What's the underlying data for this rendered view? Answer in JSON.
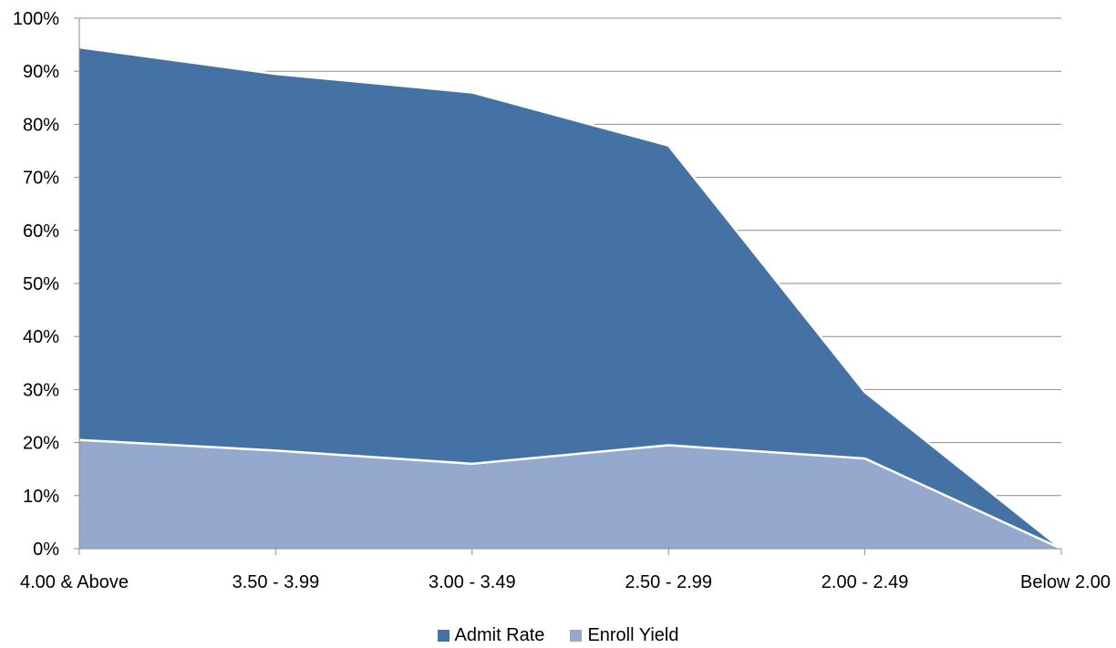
{
  "chart_data": {
    "type": "area",
    "stacked": false,
    "categories": [
      "4.00 & Above",
      "3.50 - 3.99",
      "3.00 - 3.49",
      "2.50 - 2.99",
      "2.00 - 2.49",
      "Below 2.00"
    ],
    "series": [
      {
        "name": "Admit Rate",
        "values": [
          94.5,
          89.5,
          86,
          76,
          29.5,
          0
        ],
        "color": "#4472A4"
      },
      {
        "name": "Enroll Yield",
        "values": [
          20.5,
          18.5,
          16,
          19.5,
          17,
          0
        ],
        "color": "#95A9CF"
      }
    ],
    "ylim": [
      0,
      100
    ],
    "yticks": [
      "0%",
      "10%",
      "20%",
      "30%",
      "40%",
      "50%",
      "60%",
      "70%",
      "80%",
      "90%",
      "100%"
    ],
    "ytick_values": [
      0,
      10,
      20,
      30,
      40,
      50,
      60,
      70,
      80,
      90,
      100
    ],
    "grid": true,
    "legend_position": "bottom",
    "title": "",
    "xlabel": "",
    "ylabel": ""
  }
}
